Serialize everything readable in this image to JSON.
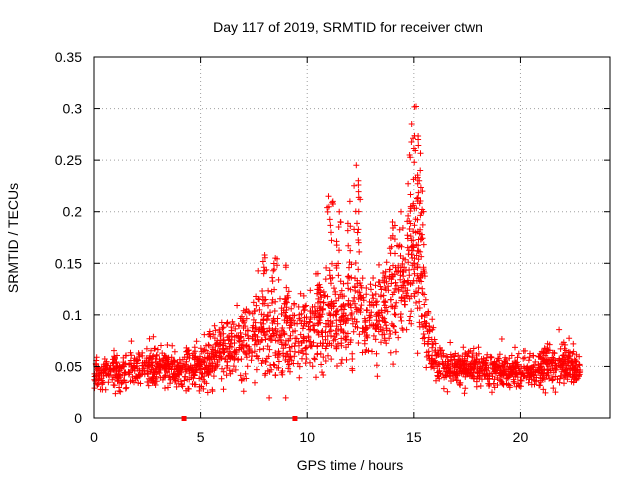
{
  "chart_data": {
    "type": "scatter",
    "title": "Day 117 of 2019, SRMTID for receiver ctwn",
    "xlabel": "GPS time / hours",
    "ylabel": "SRMTID / TECUs",
    "xlim": [
      0,
      24.2
    ],
    "ylim": [
      0,
      0.35
    ],
    "xticks": [
      0,
      5,
      10,
      15,
      20
    ],
    "xtick_labels": [
      "0",
      "5",
      "10",
      "15",
      "20"
    ],
    "yticks": [
      0,
      0.05,
      0.1,
      0.15,
      0.2,
      0.25,
      0.3,
      0.35
    ],
    "ytick_labels": [
      "0",
      "0.05",
      "0.1",
      "0.15",
      "0.2",
      "0.25",
      "0.3",
      "0.35"
    ],
    "grid": true,
    "marker": "+",
    "series": [
      {
        "name": "SRMTID",
        "color": "#ff0000",
        "envelope": {
          "description": "dense cloud of points; approximate center level vs GPS hour",
          "hours": [
            0,
            1,
            2,
            3,
            4,
            5,
            6,
            7,
            8,
            9,
            10,
            11,
            12,
            13,
            14,
            14.8,
            15.2,
            15.6,
            16,
            17,
            18,
            19,
            20,
            21,
            22,
            22.8
          ],
          "center": [
            0.042,
            0.045,
            0.047,
            0.052,
            0.045,
            0.048,
            0.065,
            0.075,
            0.085,
            0.08,
            0.085,
            0.095,
            0.1,
            0.095,
            0.11,
            0.14,
            0.15,
            0.08,
            0.055,
            0.05,
            0.048,
            0.045,
            0.045,
            0.05,
            0.05,
            0.05
          ],
          "spread": [
            0.012,
            0.015,
            0.015,
            0.018,
            0.015,
            0.02,
            0.03,
            0.035,
            0.04,
            0.035,
            0.035,
            0.04,
            0.045,
            0.04,
            0.04,
            0.05,
            0.06,
            0.03,
            0.018,
            0.015,
            0.015,
            0.015,
            0.015,
            0.018,
            0.02,
            0.015
          ]
        },
        "spikes": [
          {
            "x": 8.0,
            "y": 0.158
          },
          {
            "x": 8.5,
            "y": 0.155
          },
          {
            "x": 9.0,
            "y": 0.148
          },
          {
            "x": 10.5,
            "y": 0.14
          },
          {
            "x": 11.0,
            "y": 0.215
          },
          {
            "x": 11.2,
            "y": 0.21
          },
          {
            "x": 11.5,
            "y": 0.2
          },
          {
            "x": 12.0,
            "y": 0.21
          },
          {
            "x": 12.3,
            "y": 0.245
          },
          {
            "x": 12.4,
            "y": 0.23
          },
          {
            "x": 14.0,
            "y": 0.19
          },
          {
            "x": 14.4,
            "y": 0.2
          },
          {
            "x": 14.8,
            "y": 0.255
          },
          {
            "x": 14.9,
            "y": 0.285
          },
          {
            "x": 15.1,
            "y": 0.302
          },
          {
            "x": 15.2,
            "y": 0.27
          },
          {
            "x": 15.3,
            "y": 0.24
          },
          {
            "x": 15.4,
            "y": 0.22
          }
        ]
      }
    ],
    "gap_markers": [
      4.2,
      9.4
    ]
  }
}
